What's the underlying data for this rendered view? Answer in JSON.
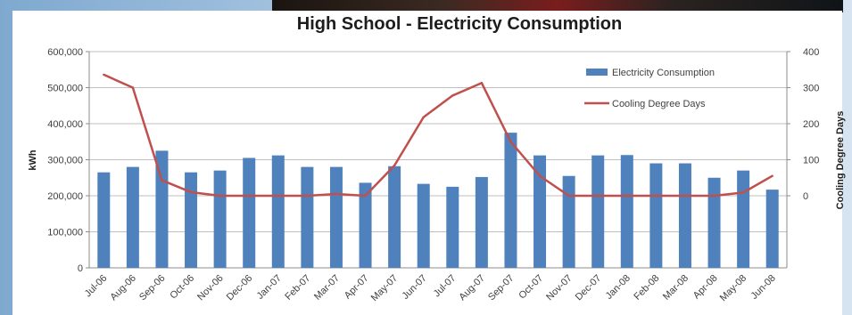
{
  "chart_data": {
    "type": "bar",
    "title": "High School - Electricity Consumption",
    "ylabel": "kWh",
    "y2label": "Cooling Degree Days",
    "ylim": [
      0,
      600000
    ],
    "y2lim": [
      -200,
      400
    ],
    "yticks": [
      "600,000",
      "500,000",
      "400,000",
      "300,000",
      "200,000",
      "100,000",
      "0"
    ],
    "y2ticks": [
      "400",
      "300",
      "200",
      "100",
      "0"
    ],
    "categories": [
      "Jul-06",
      "Aug-06",
      "Sep-06",
      "Oct-06",
      "Nov-06",
      "Dec-06",
      "Jan-07",
      "Feb-07",
      "Mar-07",
      "Apr-07",
      "May-07",
      "Jun-07",
      "Jul-07",
      "Aug-07",
      "Sep-07",
      "Oct-07",
      "Nov-07",
      "Dec-07",
      "Jan-08",
      "Feb-08",
      "Mar-08",
      "Apr-08",
      "May-08",
      "Jun-08"
    ],
    "grid": true,
    "legend_position": "top-right",
    "series": [
      {
        "name": "Electricity Consumption",
        "kind": "bar",
        "axis": "left",
        "color": "#4f81bd",
        "values": [
          265000,
          280000,
          325000,
          265000,
          270000,
          305000,
          312000,
          280000,
          280000,
          236000,
          282000,
          233000,
          225000,
          252000,
          375000,
          312000,
          255000,
          312000,
          313000,
          290000,
          290000,
          250000,
          270000,
          217000
        ]
      },
      {
        "name": "Cooling Degree Days",
        "kind": "line",
        "axis": "right",
        "color": "#c0504d",
        "values": [
          336,
          300,
          43,
          10,
          0,
          0,
          0,
          0,
          5,
          0,
          84,
          218,
          278,
          313,
          150,
          55,
          0,
          0,
          0,
          0,
          0,
          0,
          9,
          55
        ]
      }
    ]
  }
}
